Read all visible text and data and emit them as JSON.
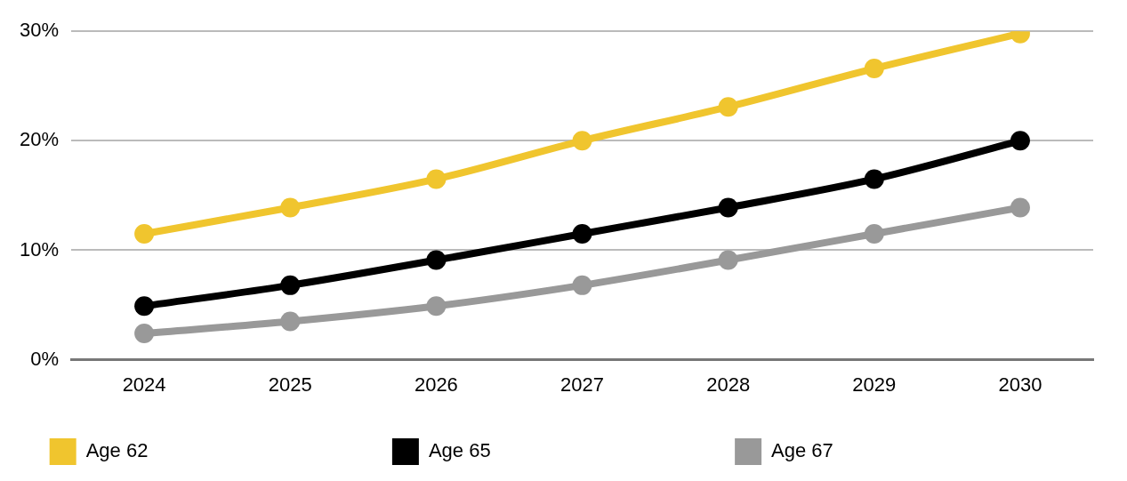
{
  "chart_data": {
    "type": "line",
    "categories": [
      "2024",
      "2025",
      "2026",
      "2027",
      "2028",
      "2029",
      "2030"
    ],
    "series": [
      {
        "name": "Age 62",
        "color": "#f0c52e",
        "values": [
          11.5,
          13.9,
          16.5,
          20,
          23.1,
          26.6,
          29.8
        ]
      },
      {
        "name": "Age 65",
        "color": "#000000",
        "values": [
          4.9,
          6.8,
          9.1,
          11.5,
          13.9,
          16.5,
          20
        ]
      },
      {
        "name": "Age 67",
        "color": "#999999",
        "values": [
          2.4,
          3.5,
          4.9,
          6.8,
          9.1,
          11.5,
          13.9
        ]
      }
    ],
    "ylim": [
      0,
      30
    ],
    "yticks": [
      {
        "value": 0,
        "label": "0%"
      },
      {
        "value": 10,
        "label": "10%"
      },
      {
        "value": 20,
        "label": "20%"
      },
      {
        "value": 30,
        "label": "30%"
      }
    ],
    "grid": "y",
    "legend": "bottom",
    "marker": "circle",
    "line_style": "solid"
  }
}
